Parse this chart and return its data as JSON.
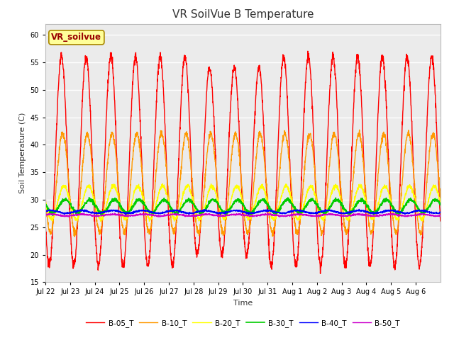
{
  "title": "VR SoilVue B Temperature",
  "ylabel": "Soil Temperature (C)",
  "xlabel": "Time",
  "ylim": [
    15,
    62
  ],
  "yticks": [
    15,
    20,
    25,
    30,
    35,
    40,
    45,
    50,
    55,
    60
  ],
  "x_tick_labels": [
    "Jul 22",
    "Jul 23",
    "Jul 24",
    "Jul 25",
    "Jul 26",
    "Jul 27",
    "Jul 28",
    "Jul 29",
    "Jul 30",
    "Jul 31",
    "Aug 1",
    "Aug 2",
    "Aug 3",
    "Aug 4",
    "Aug 5",
    "Aug 6"
  ],
  "series": {
    "B-05_T": {
      "color": "#ff0000",
      "linewidth": 1.0
    },
    "B-10_T": {
      "color": "#ff9900",
      "linewidth": 1.0
    },
    "B-20_T": {
      "color": "#ffff00",
      "linewidth": 1.0
    },
    "B-30_T": {
      "color": "#00cc00",
      "linewidth": 1.2
    },
    "B-40_T": {
      "color": "#0000ff",
      "linewidth": 1.0
    },
    "B-50_T": {
      "color": "#cc00cc",
      "linewidth": 1.0
    }
  },
  "legend_label": "VR_soilvue",
  "legend_box_color": "#ffff99",
  "legend_box_edge": "#aa8800",
  "plot_bg_color": "#ebebeb",
  "title_fontsize": 11,
  "axis_fontsize": 8,
  "tick_fontsize": 7,
  "n_days": 16,
  "points_per_day": 144
}
